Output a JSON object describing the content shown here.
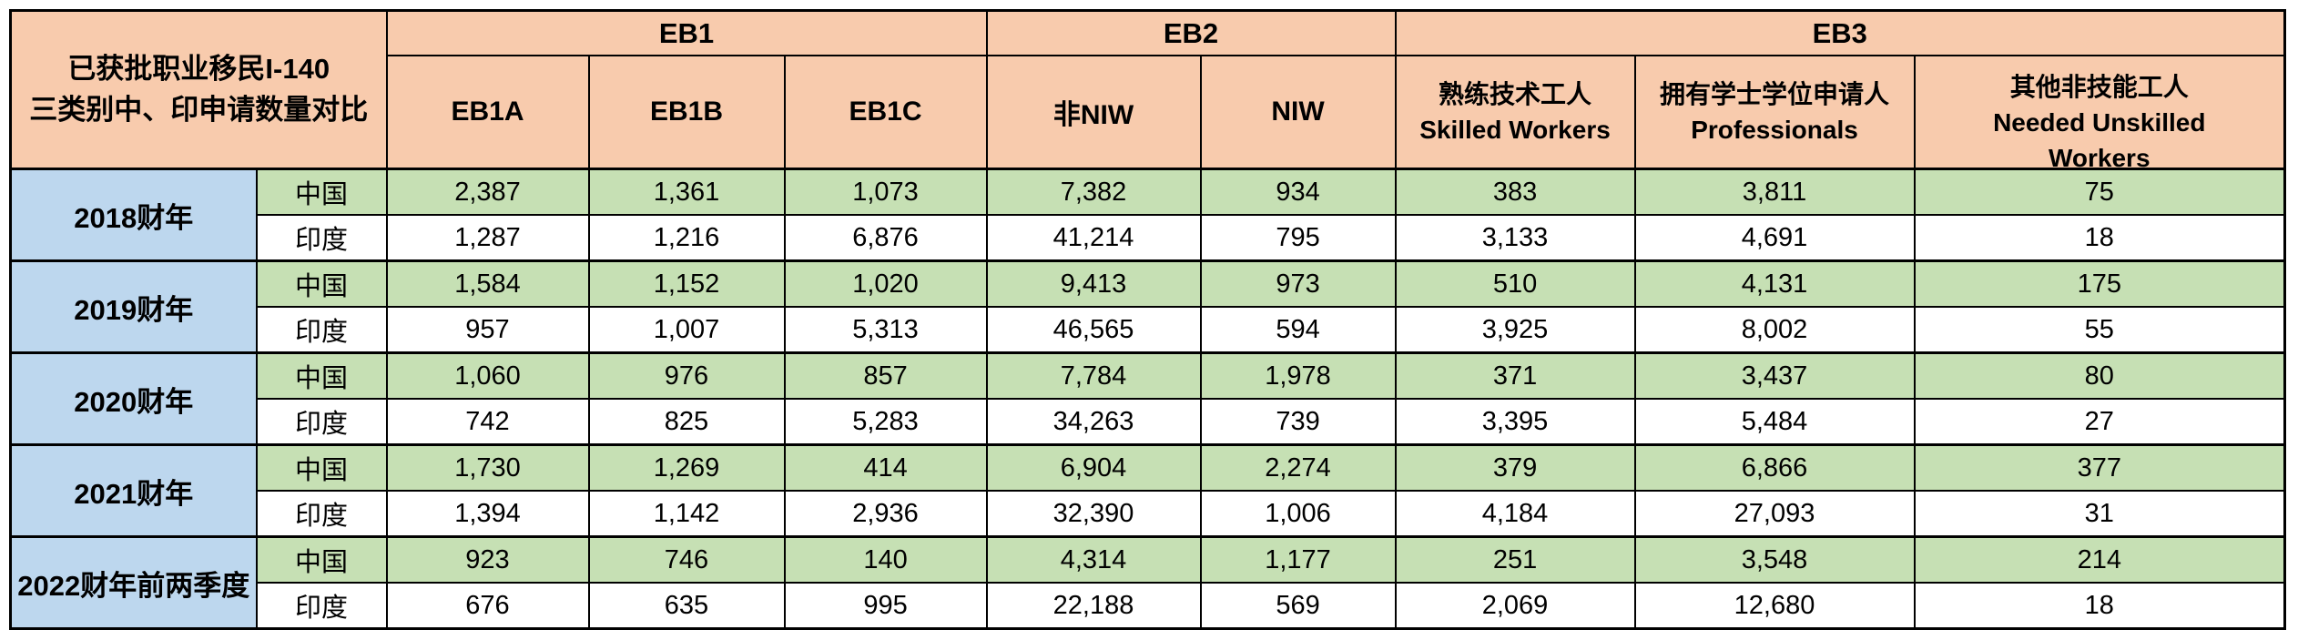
{
  "title": {
    "line1": "已获批职业移民I-140",
    "line2": "三类别中、印申请数量对比"
  },
  "colors": {
    "header_orange": "#F8CBAD",
    "year_blue": "#BDD7EE",
    "china_green": "#C6E0B4",
    "india_white": "#FFFFFF",
    "title_gray": "#C9C9C9",
    "border_black": "#000000"
  },
  "header": {
    "groups": [
      {
        "label": "EB1",
        "span": 3
      },
      {
        "label": "EB2",
        "span": 2
      },
      {
        "label": "EB3",
        "span": 3
      }
    ],
    "subcolumns": [
      {
        "label": "EB1A"
      },
      {
        "label": "EB1B"
      },
      {
        "label": "EB1C"
      },
      {
        "label": "非NIW"
      },
      {
        "label": "NIW"
      },
      {
        "cn": "熟练技术工人",
        "en": "Skilled Workers"
      },
      {
        "cn": "拥有学士学位申请人",
        "en": "Professionals"
      },
      {
        "cn": "其他非技能工人",
        "en": "Needed Unskilled",
        "en2": "Workers"
      }
    ]
  },
  "body": {
    "groups": [
      {
        "year": "2018财年",
        "rows": [
          {
            "country": "中国",
            "values": [
              "2,387",
              "1,361",
              "1,073",
              "7,382",
              "934",
              "383",
              "3,811",
              "75"
            ]
          },
          {
            "country": "印度",
            "values": [
              "1,287",
              "1,216",
              "6,876",
              "41,214",
              "795",
              "3,133",
              "4,691",
              "18"
            ]
          }
        ]
      },
      {
        "year": "2019财年",
        "rows": [
          {
            "country": "中国",
            "values": [
              "1,584",
              "1,152",
              "1,020",
              "9,413",
              "973",
              "510",
              "4,131",
              "175"
            ]
          },
          {
            "country": "印度",
            "values": [
              "957",
              "1,007",
              "5,313",
              "46,565",
              "594",
              "3,925",
              "8,002",
              "55"
            ]
          }
        ]
      },
      {
        "year": "2020财年",
        "rows": [
          {
            "country": "中国",
            "values": [
              "1,060",
              "976",
              "857",
              "7,784",
              "1,978",
              "371",
              "3,437",
              "80"
            ]
          },
          {
            "country": "印度",
            "values": [
              "742",
              "825",
              "5,283",
              "34,263",
              "739",
              "3,395",
              "5,484",
              "27"
            ]
          }
        ]
      },
      {
        "year": "2021财年",
        "rows": [
          {
            "country": "中国",
            "values": [
              "1,730",
              "1,269",
              "414",
              "6,904",
              "2,274",
              "379",
              "6,866",
              "377"
            ]
          },
          {
            "country": "印度",
            "values": [
              "1,394",
              "1,142",
              "2,936",
              "32,390",
              "1,006",
              "4,184",
              "27,093",
              "31"
            ]
          }
        ]
      },
      {
        "year": "2022财年前两季度",
        "rows": [
          {
            "country": "中国",
            "values": [
              "923",
              "746",
              "140",
              "4,314",
              "1,177",
              "251",
              "3,548",
              "214"
            ]
          },
          {
            "country": "印度",
            "values": [
              "676",
              "635",
              "995",
              "22,188",
              "569",
              "2,069",
              "12,680",
              "18"
            ]
          }
        ]
      }
    ]
  },
  "chart_data": {
    "type": "table",
    "title": "已获批职业移民I-140 三类别中、印申请数量对比",
    "column_groups": [
      "EB1",
      "EB1",
      "EB1",
      "EB2",
      "EB2",
      "EB3",
      "EB3",
      "EB3"
    ],
    "columns": [
      "EB1A",
      "EB1B",
      "EB1C",
      "非NIW",
      "NIW",
      "熟练技术工人 Skilled Workers",
      "拥有学士学位申请人 Professionals",
      "其他非技能工人 Needed Unskilled Workers"
    ],
    "rows": [
      {
        "year": "2018财年",
        "country": "中国",
        "values": [
          2387,
          1361,
          1073,
          7382,
          934,
          383,
          3811,
          75
        ]
      },
      {
        "year": "2018财年",
        "country": "印度",
        "values": [
          1287,
          1216,
          6876,
          41214,
          795,
          3133,
          4691,
          18
        ]
      },
      {
        "year": "2019财年",
        "country": "中国",
        "values": [
          1584,
          1152,
          1020,
          9413,
          973,
          510,
          4131,
          175
        ]
      },
      {
        "year": "2019财年",
        "country": "印度",
        "values": [
          957,
          1007,
          5313,
          46565,
          594,
          3925,
          8002,
          55
        ]
      },
      {
        "year": "2020财年",
        "country": "中国",
        "values": [
          1060,
          976,
          857,
          7784,
          1978,
          371,
          3437,
          80
        ]
      },
      {
        "year": "2020财年",
        "country": "印度",
        "values": [
          742,
          825,
          5283,
          34263,
          739,
          3395,
          5484,
          27
        ]
      },
      {
        "year": "2021财年",
        "country": "中国",
        "values": [
          1730,
          1269,
          414,
          6904,
          2274,
          379,
          6866,
          377
        ]
      },
      {
        "year": "2021财年",
        "country": "印度",
        "values": [
          1394,
          1142,
          2936,
          32390,
          1006,
          4184,
          27093,
          31
        ]
      },
      {
        "year": "2022财年前两季度",
        "country": "中国",
        "values": [
          923,
          746,
          140,
          4314,
          1177,
          251,
          3548,
          214
        ]
      },
      {
        "year": "2022财年前两季度",
        "country": "印度",
        "values": [
          676,
          635,
          995,
          22188,
          569,
          2069,
          12680,
          18
        ]
      }
    ]
  }
}
